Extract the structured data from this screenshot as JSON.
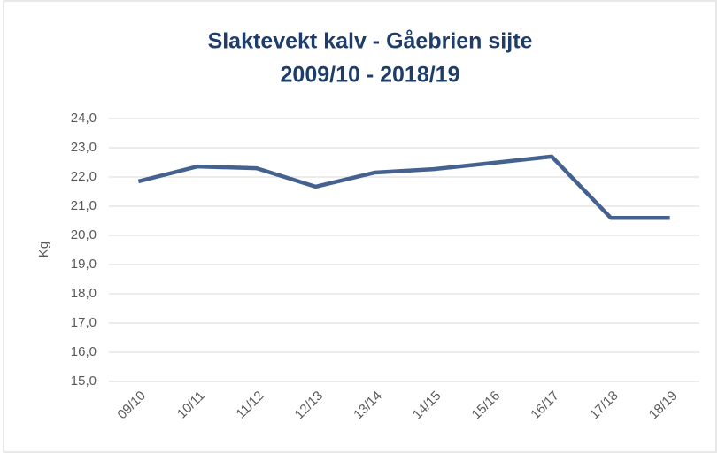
{
  "chart_data": {
    "type": "line",
    "title": [
      "Slaktevekt kalv - Gåebrien sijte",
      "2009/10 - 2018/19"
    ],
    "y_label": "Kg",
    "categories": [
      "09/10",
      "10/11",
      "11/12",
      "12/13",
      "13/14",
      "14/15",
      "15/16",
      "16/17",
      "17/18",
      "18/19"
    ],
    "series": [
      {
        "name": "Slaktevekt",
        "color": "#44618f",
        "values": [
          21.85,
          22.36,
          22.3,
          21.67,
          22.15,
          22.27,
          22.48,
          22.7,
          20.6,
          20.6
        ]
      }
    ],
    "ylim": [
      15,
      24
    ],
    "yticks": [
      {
        "value": 15,
        "label": "15,0"
      },
      {
        "value": 16,
        "label": "16,0"
      },
      {
        "value": 17,
        "label": "17,0"
      },
      {
        "value": 18,
        "label": "18,0"
      },
      {
        "value": 19,
        "label": "19,0"
      },
      {
        "value": 20,
        "label": "20,0"
      },
      {
        "value": 21,
        "label": "21,0"
      },
      {
        "value": 22,
        "label": "22,0"
      },
      {
        "value": 23,
        "label": "23,0"
      },
      {
        "value": 24,
        "label": "24,0"
      }
    ],
    "grid": true
  }
}
